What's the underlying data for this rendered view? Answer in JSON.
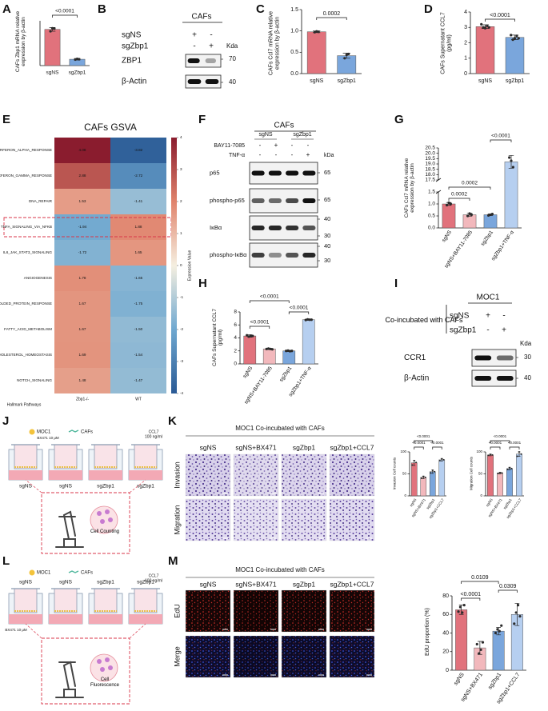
{
  "panel_labels": [
    "A",
    "B",
    "C",
    "D",
    "E",
    "F",
    "G",
    "H",
    "I",
    "J",
    "K",
    "L",
    "M"
  ],
  "chart_data": [
    {
      "type": "bar",
      "ylabel": "CAFs Zbp1 mRNA relative expression by β-actin",
      "categories": [
        "sgNS",
        "sgZbp1"
      ],
      "values": [
        0.97,
        0.17
      ],
      "errors": [
        0.05,
        0.02
      ],
      "points": [
        [
          0.92,
          1.0,
          0.99
        ],
        [
          0.16,
          0.18,
          0.17
        ]
      ],
      "colors": [
        "#e1727c",
        "#7aa6dc"
      ],
      "ylim": [
        0,
        1.2
      ],
      "comparisons": [
        "<0.0001"
      ]
    },
    {
      "type": "bar",
      "ylabel": "CAFs Ccl7 mRNA relative expression by β-actin",
      "categories": [
        "sgNS",
        "sgZbp1"
      ],
      "values": [
        0.98,
        0.42
      ],
      "errors": [
        0.02,
        0.06
      ],
      "points": [
        [
          0.97,
          0.99,
          0.98
        ],
        [
          0.36,
          0.44,
          0.46
        ]
      ],
      "colors": [
        "#e1727c",
        "#7aa6dc"
      ],
      "ylim": [
        0,
        1.5
      ],
      "yticks": [
        {
          "value": 0,
          "label": "0.0"
        },
        0.5,
        {
          "value": 1,
          "label": "1.0"
        },
        1.5
      ],
      "comparisons": [
        "0.0002"
      ]
    },
    {
      "type": "bar",
      "ylabel": "CAFs Supernatant CCL7 (pg/ml)",
      "categories": [
        "sgNS",
        "sgZbp1"
      ],
      "values": [
        3.05,
        2.35
      ],
      "errors": [
        0.12,
        0.15
      ],
      "points": [
        [
          3.2,
          3.0,
          2.95,
          3.1,
          3.0
        ],
        [
          2.5,
          2.2,
          2.3,
          2.45,
          2.3
        ]
      ],
      "colors": [
        "#e1727c",
        "#7aa6dc"
      ],
      "ylim": [
        0,
        4
      ],
      "yticks": [
        0,
        1,
        2,
        3,
        4
      ],
      "comparisons": [
        "<0.0001"
      ]
    },
    {
      "type": "heatmap",
      "title": "CAFs GSVA",
      "rows": [
        "INTERFERON_ALPHA_RESPONSE",
        "INTERFERON_GAMMA_RESPONSE",
        "DNA_REPAIR",
        "TNFA_SIGNALING_VIA_NFKB",
        "IL6_JAK_STAT3_SIGNALING",
        "ANGIOGENESIS",
        "UNFOLDED_PROTEIN_RESPONSE",
        "FATTY_ACID_METABOLISM",
        "CHOLESTEROL_HOMEOSTASIS",
        "NOTCH_SIGNALING"
      ],
      "columns": [
        "Zbp1-/-",
        "WT"
      ],
      "values": [
        [
          4.08,
          -3.82
        ],
        [
          2.88,
          -2.72
        ],
        [
          1.53,
          -1.41
        ],
        [
          -1.94,
          1.88
        ],
        [
          -1.72,
          1.65
        ],
        [
          1.78,
          -1.65
        ],
        [
          1.67,
          -1.75
        ],
        [
          1.67,
          -1.5
        ],
        [
          1.69,
          -1.54
        ],
        [
          1.48,
          -1.47
        ]
      ],
      "value_labels": [
        [
          "4.08",
          "-3.82"
        ],
        [
          "2.88",
          "-2.72"
        ],
        [
          "1.53",
          "-1.41"
        ],
        [
          "-1.94",
          "1.88"
        ],
        [
          "-1.72",
          "1.65"
        ],
        [
          "1.78",
          "-1.65"
        ],
        [
          "1.67",
          "-1.75"
        ],
        [
          "1.67",
          "-1.50"
        ],
        [
          "1.69",
          "-1.54"
        ],
        [
          "1.48",
          "-1.47"
        ]
      ],
      "zlim": [
        -4,
        4
      ],
      "zticks": [
        4,
        3,
        2,
        1,
        0,
        -1,
        -2,
        -3,
        -4
      ],
      "zlabel": "Expression Value",
      "row_axis_label": "Hallmark Pathways"
    },
    {
      "type": "bar",
      "ylabel": "CAFs Ccl7 mRNA relative expression by β-actin",
      "categories": [
        "sgNS",
        "sgNS+BAY11-7085",
        "sgZbp1",
        "sgZbp1+TNF-α"
      ],
      "values": [
        1.0,
        0.55,
        0.55,
        19.2
      ],
      "errors": [
        0.06,
        0.06,
        0.04,
        0.6
      ],
      "points": [
        [
          0.95,
          1.05,
          1.0
        ],
        [
          0.5,
          0.6,
          0.55
        ],
        [
          0.52,
          0.55,
          0.58
        ],
        [
          19.6,
          19.3,
          18.7
        ]
      ],
      "colors": [
        "#e1727c",
        "#f2b8bc",
        "#7aa6dc",
        "#b6cff0"
      ],
      "ylim": [
        0,
        20.5
      ],
      "axis_break": [
        1.5,
        17.5
      ],
      "yticks": [
        {
          "value": 0,
          "label": "0.0"
        },
        0.5,
        {
          "value": 1,
          "label": "1.0"
        },
        1.5,
        17.5,
        {
          "value": 18,
          "label": "18.0"
        },
        18.5,
        {
          "value": 19,
          "label": "19.0"
        },
        19.5,
        {
          "value": 20,
          "label": "20.0"
        },
        20.5
      ],
      "comparisons": [
        "<0.0001",
        "0.0002",
        "0.0002"
      ]
    },
    {
      "type": "bar",
      "ylabel": "CAFs Supernatant CCL7 (pg/ml)",
      "categories": [
        "sgNS",
        "sgNS+BAY11-7085",
        "sgZbp1",
        "sgZbp1+TNF-α"
      ],
      "values": [
        4.3,
        2.3,
        2.0,
        6.8
      ],
      "errors": [
        0.2,
        0.1,
        0.1,
        0.1
      ],
      "points": [
        [
          4.4,
          4.2,
          4.3,
          4.3
        ],
        [
          2.3,
          2.35,
          2.3,
          2.25
        ],
        [
          2.0,
          2.05,
          1.95,
          2.0
        ],
        [
          6.75,
          6.85,
          6.8,
          6.8
        ]
      ],
      "colors": [
        "#e1727c",
        "#f2b8bc",
        "#7aa6dc",
        "#b6cff0"
      ],
      "ylim": [
        0,
        8
      ],
      "yticks": [
        0,
        2,
        4,
        6,
        8
      ],
      "comparisons": [
        "<0.0001",
        "<0.0001",
        "<0.0001"
      ]
    },
    {
      "type": "bar",
      "ylabel": "Invasion Cell counts",
      "categories": [
        "sgNS",
        "sgNS+BX471",
        "sgZbp1",
        "sgZbp1+CCL7"
      ],
      "values": [
        75,
        42,
        55,
        82
      ],
      "errors": [
        6,
        3,
        4,
        3
      ],
      "points": [
        [
          70,
          80,
          76
        ],
        [
          40,
          44,
          42
        ],
        [
          52,
          58,
          55
        ],
        [
          80,
          84,
          82
        ]
      ],
      "colors": [
        "#e1727c",
        "#f2b8bc",
        "#7aa6dc",
        "#b6cff0"
      ],
      "ylim": [
        0,
        100
      ],
      "yticks": [
        0,
        50,
        100
      ],
      "comparisons": [
        "<0.0001",
        "<0.0001",
        "<0.0001"
      ]
    },
    {
      "type": "bar",
      "ylabel": "Migration Cell counts",
      "categories": [
        "sgNS",
        "sgNS+BX471",
        "sgZbp1",
        "sgZbp1+CCL7"
      ],
      "values": [
        93,
        52,
        62,
        95
      ],
      "errors": [
        2,
        2,
        3,
        5
      ],
      "points": [
        [
          92,
          94,
          93
        ],
        [
          51,
          53,
          52
        ],
        [
          60,
          64,
          62
        ],
        [
          90,
          100,
          95
        ]
      ],
      "colors": [
        "#e1727c",
        "#f2b8bc",
        "#7aa6dc",
        "#b6cff0"
      ],
      "ylim": [
        0,
        100
      ],
      "yticks": [
        0,
        50,
        100
      ],
      "comparisons": [
        "<0.0001",
        "<0.0001",
        "<0.0001"
      ]
    },
    {
      "type": "bar",
      "ylabel": "EdU proportion (%)",
      "categories": [
        "sgNS",
        "sgNS+BX471",
        "sgZbp1",
        "sgZbp1+CCL7"
      ],
      "values": [
        65,
        24,
        42,
        60
      ],
      "errors": [
        5,
        7,
        4,
        12
      ],
      "points": [
        [
          63,
          68,
          62,
          70
        ],
        [
          28,
          18,
          22,
          30
        ],
        [
          40,
          44,
          42,
          48
        ],
        [
          50,
          62,
          70,
          58
        ]
      ],
      "colors": [
        "#e1727c",
        "#f2b8bc",
        "#7aa6dc",
        "#b6cff0"
      ],
      "ylim": [
        0,
        80
      ],
      "yticks": [
        0,
        20,
        40,
        60,
        80
      ],
      "comparisons": [
        "0.0109",
        "<0.0001",
        "0.0309"
      ]
    }
  ],
  "blots": [
    {
      "header": "CAFs",
      "conditions": [
        {
          "name": "sgNS",
          "signs": [
            "+",
            "-"
          ]
        },
        {
          "name": "sgZbp1",
          "signs": [
            "-",
            "+"
          ]
        }
      ],
      "unit": "Kda",
      "rows": [
        {
          "name": "ZBP1",
          "markers": [
            "70"
          ]
        },
        {
          "name": "β-Actin",
          "markers": [
            "40"
          ]
        }
      ]
    },
    {
      "header": "CAFs",
      "groups": [
        "sgNS",
        "sgZbp1"
      ],
      "conditions": [
        {
          "name": "BAY11-7085",
          "signs": [
            "-",
            "+",
            "-",
            "-"
          ]
        },
        {
          "name": "TNF-α",
          "signs": [
            "-",
            "-",
            "-",
            "+"
          ]
        }
      ],
      "unit": "kDa",
      "rows": [
        {
          "name": "p65",
          "markers": [
            "65"
          ]
        },
        {
          "name": "phospho-p65",
          "markers": [
            "65"
          ]
        },
        {
          "name": "IκBα",
          "markers": [
            "40",
            "30"
          ]
        },
        {
          "name": "phospho-IκBα",
          "markers": [
            "40",
            "30"
          ]
        }
      ]
    },
    {
      "header": "MOC1",
      "side_label": "Co-incubated with CAFs",
      "conditions": [
        {
          "name": "sgNS",
          "signs": [
            "+",
            "-"
          ]
        },
        {
          "name": "sgZbp1",
          "signs": [
            "-",
            "+"
          ]
        }
      ],
      "unit": "Kda",
      "rows": [
        {
          "name": "CCR1",
          "markers": [
            "30"
          ]
        },
        {
          "name": "β-Actin",
          "markers": [
            "40"
          ]
        }
      ]
    }
  ],
  "schematics": [
    {
      "legend": [
        "MOC1",
        "CAFs"
      ],
      "treatments": [
        "BX471 10 μM",
        "CCL7",
        "100 ng/ml"
      ],
      "wells": [
        "sgNS",
        "sgNS",
        "sgZbp1",
        "sgZbp1"
      ],
      "readout": "Cell Counting"
    },
    {
      "legend": [
        "MOC1",
        "CAFs"
      ],
      "treatments": [
        "BX471 10 μM",
        "CCL7",
        "100 ng/ml"
      ],
      "wells": [
        "sgNS",
        "sgNS",
        "sgZbp1",
        "sgZbp1"
      ],
      "readout": "Cell Fluorescence"
    }
  ],
  "micrographs": [
    {
      "title": "MOC1 Co-incubated with CAFs",
      "columns": [
        "sgNS",
        "sgNS+BX471",
        "sgZbp1",
        "sgZbp1+CCL7"
      ],
      "rows": [
        "Invasion",
        "Migration"
      ]
    },
    {
      "title": "MOC1 Co-incubated with CAFs",
      "columns": [
        "sgNS",
        "sgNS+BX471",
        "sgZbp1",
        "sgZbp1+CCL7"
      ],
      "rows": [
        "EdU",
        "Merge"
      ]
    }
  ]
}
